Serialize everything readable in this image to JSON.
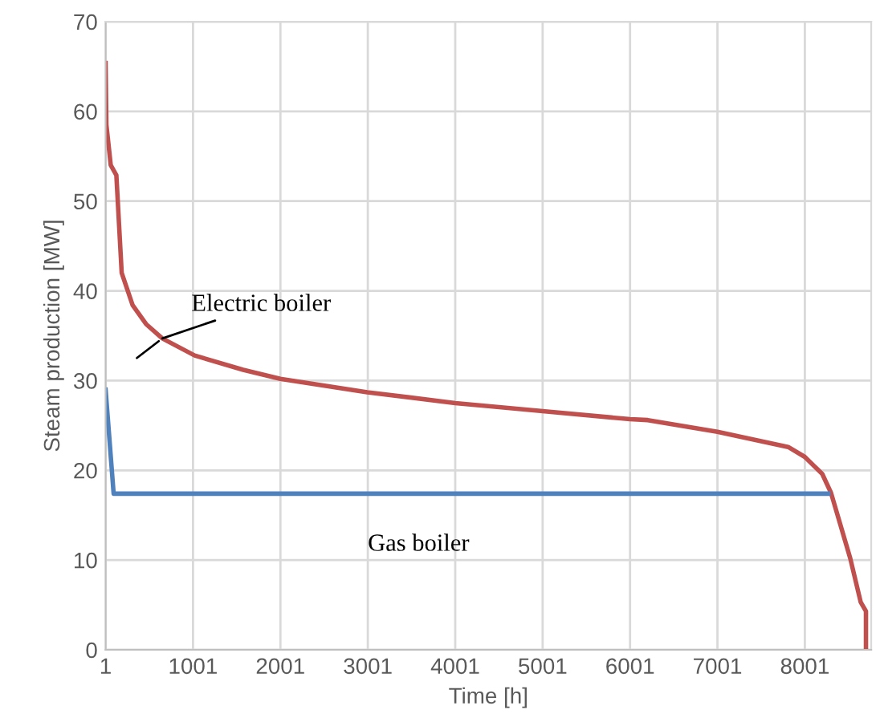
{
  "chart_data": {
    "type": "line",
    "xlabel": "Time [h]",
    "ylabel": "Steam production [MW]",
    "xlim": [
      1,
      8760
    ],
    "xticks": [
      1,
      1001,
      2001,
      3001,
      4001,
      5001,
      6001,
      7001,
      8001
    ],
    "ylim": [
      0,
      70
    ],
    "yticks": [
      0,
      10,
      20,
      30,
      40,
      50,
      60,
      70
    ],
    "grid": true,
    "marker": "none",
    "line_style": "solid",
    "series": [
      {
        "color": "#c0504d",
        "x": [
          1,
          10,
          60,
          124,
          185,
          310,
          464,
          650,
          1020,
          1575,
          2000,
          2995,
          4001,
          5001,
          6001,
          6204,
          7001,
          7810,
          8000,
          8200,
          8300,
          8520,
          8640,
          8700,
          8700
        ],
        "values": [
          65.4,
          58.5,
          54,
          52.9,
          42,
          38.4,
          36.3,
          34.7,
          32.8,
          31.2,
          30.2,
          28.7,
          27.5,
          26.6,
          25.7,
          25.6,
          24.3,
          22.6,
          21.5,
          19.6,
          17.5,
          10.2,
          5.3,
          4.3,
          0
        ]
      },
      {
        "color": "#4f81bd",
        "x": [
          1,
          93,
          8270
        ],
        "values": [
          29.0,
          17.4,
          17.4
        ]
      }
    ],
    "annotations": [
      {
        "text": "Electric boiler",
        "x": 650,
        "y": 34.7
      },
      {
        "text": "Gas boiler",
        "x": 3001,
        "y": 17.4
      }
    ]
  }
}
